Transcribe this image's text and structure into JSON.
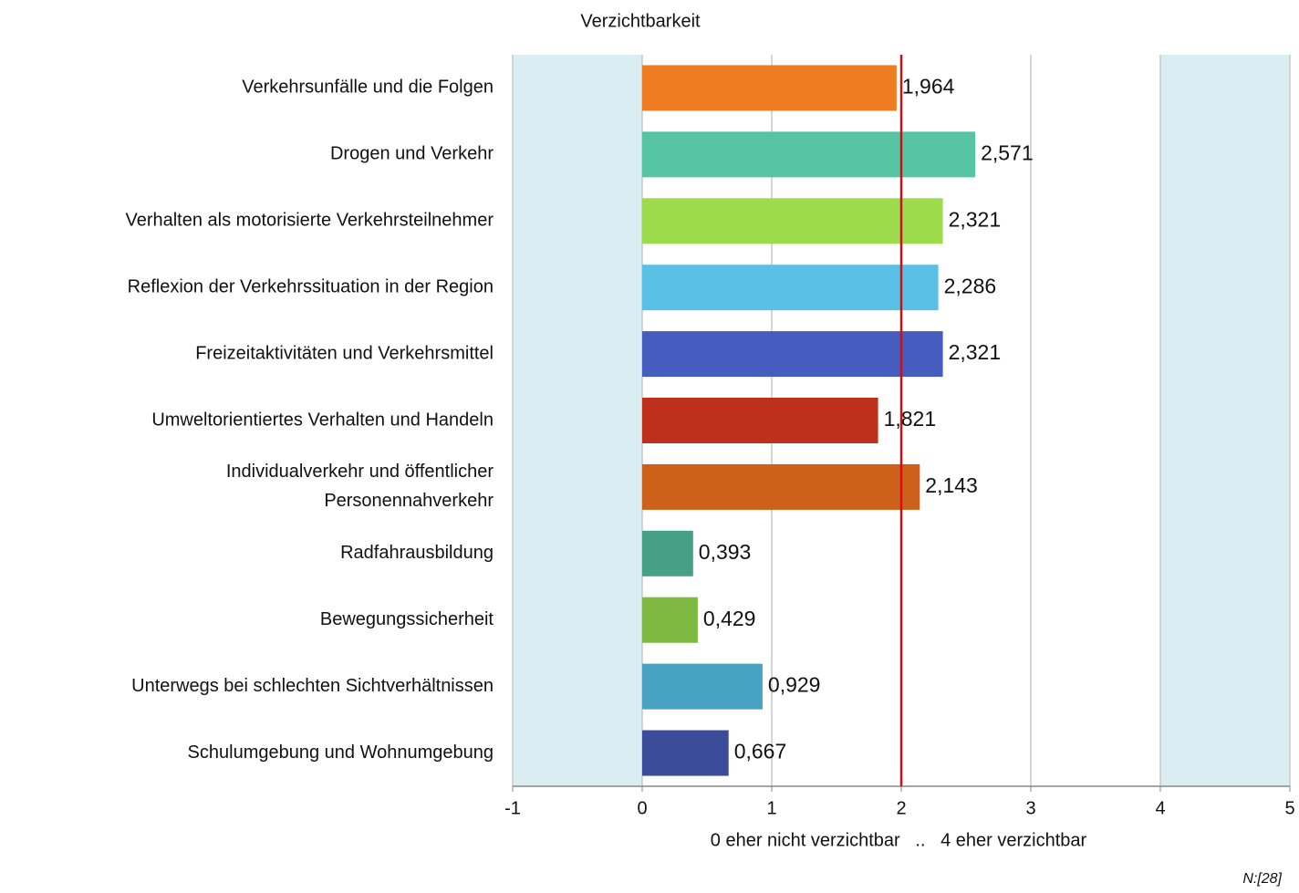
{
  "chart_data": {
    "type": "bar",
    "orientation": "horizontal",
    "title": "Verzichtbarkeit",
    "categories": [
      "Verkehrsunfälle und die Folgen",
      "Drogen und Verkehr",
      "Verhalten als motorisierte Verkehrsteilnehmer",
      "Reflexion der Verkehrssituation in der Region",
      "Freizeitaktivitäten und Verkehrsmittel",
      "Umweltorientiertes Verhalten und Handeln",
      "Individualverkehr und öffentlicher\nPersonennahverkehr",
      "Radfahrausbildung",
      "Bewegungssicherheit",
      "Unterwegs bei schlechten Sichtverhältnissen",
      "Schulumgebung und Wohnumgebung"
    ],
    "values": [
      1.964,
      2.571,
      2.321,
      2.286,
      2.321,
      1.821,
      2.143,
      0.393,
      0.429,
      0.929,
      0.667
    ],
    "value_labels": [
      "1,964",
      "2,571",
      "2,321",
      "2,286",
      "2,321",
      "1,821",
      "2,143",
      "0,393",
      "0,429",
      "0,929",
      "0,667"
    ],
    "colors": [
      "#f07c22",
      "#56c4a3",
      "#9edb4c",
      "#5bc0e6",
      "#465dbf",
      "#bf301c",
      "#cd6119",
      "#45a085",
      "#7fb941",
      "#47a1c1",
      "#3a4c9a"
    ],
    "xlim": [
      -1,
      5
    ],
    "xticks": [
      -1,
      0,
      1,
      2,
      3,
      4,
      5
    ],
    "grid": true,
    "shaded_ranges": [
      [
        -1,
        0
      ],
      [
        4,
        5
      ]
    ],
    "shade_color": "#daedf3",
    "reference_line": 2,
    "reference_color": "#d01010",
    "x_label": "0 eher nicht verzichtbar   ..   4 eher verzichtbar",
    "note": "N:[28]"
  }
}
